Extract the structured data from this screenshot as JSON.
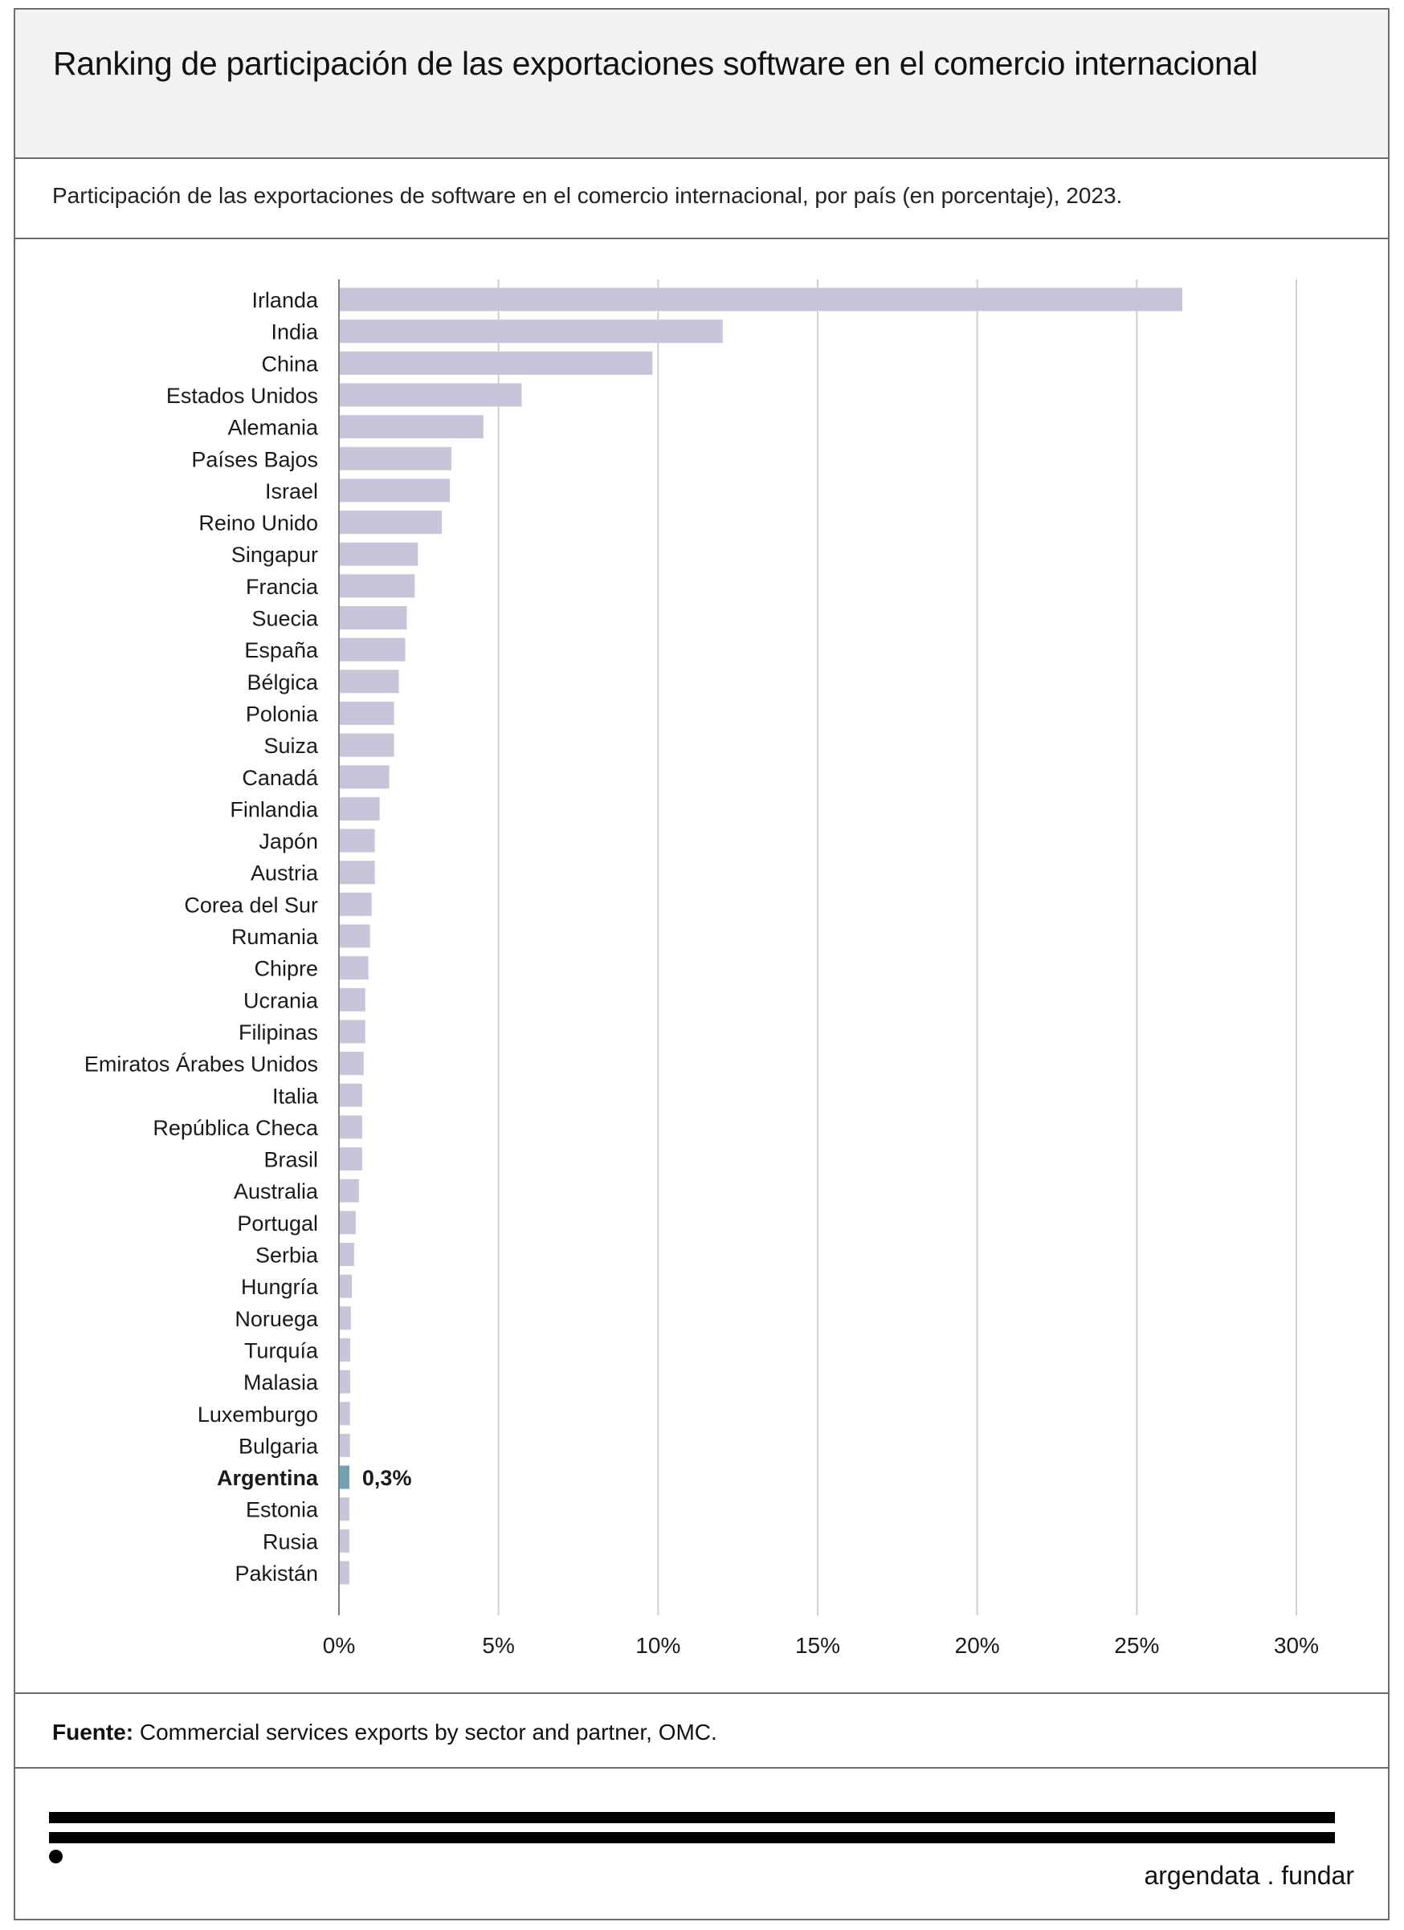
{
  "title": "Ranking de participación de las exportaciones software en el comercio internacional",
  "subtitle": "Participación de las exportaciones de software en el comercio internacional, por país (en porcentaje), 2023.",
  "source": {
    "label": "Fuente:",
    "text": " Commercial services exports by sector and partner, OMC."
  },
  "brand": "argendata . fundar",
  "colors": {
    "bar": "#c7c5da",
    "highlight": "#6fa3b4",
    "grid": "#cfcfcf",
    "axis": "#808080"
  },
  "chart_data": {
    "type": "bar",
    "orientation": "horizontal",
    "title": "",
    "xlabel": "",
    "ylabel": "",
    "xlim": [
      0,
      30
    ],
    "x_ticks": [
      "0%",
      "5%",
      "10%",
      "15%",
      "20%",
      "25%",
      "30%"
    ],
    "grid": true,
    "highlight": {
      "category": "Argentina",
      "label": "0,3%"
    },
    "categories": [
      "Irlanda",
      "India",
      "China",
      "Estados Unidos",
      "Alemania",
      "Países Bajos",
      "Israel",
      "Reino Unido",
      "Singapur",
      "Francia",
      "Suecia",
      "España",
      "Bélgica",
      "Polonia",
      "Suiza",
      "Canadá",
      "Finlandia",
      "Japón",
      "Austria",
      "Corea del Sur",
      "Rumania",
      "Chipre",
      "Ucrania",
      "Filipinas",
      "Emiratos Árabes Unidos",
      "Italia",
      "República Checa",
      "Brasil",
      "Australia",
      "Portugal",
      "Serbia",
      "Hungría",
      "Noruega",
      "Turquía",
      "Malasia",
      "Luxemburgo",
      "Bulgaria",
      "Argentina",
      "Estonia",
      "Rusia",
      "Pakistán"
    ],
    "values": [
      26.4,
      12.0,
      9.8,
      5.7,
      4.5,
      3.5,
      3.45,
      3.2,
      2.45,
      2.35,
      2.1,
      2.05,
      1.85,
      1.7,
      1.7,
      1.55,
      1.25,
      1.1,
      1.1,
      1.0,
      0.95,
      0.9,
      0.8,
      0.8,
      0.75,
      0.7,
      0.7,
      0.7,
      0.6,
      0.5,
      0.45,
      0.38,
      0.35,
      0.33,
      0.33,
      0.32,
      0.32,
      0.3,
      0.3,
      0.3,
      0.3
    ]
  }
}
